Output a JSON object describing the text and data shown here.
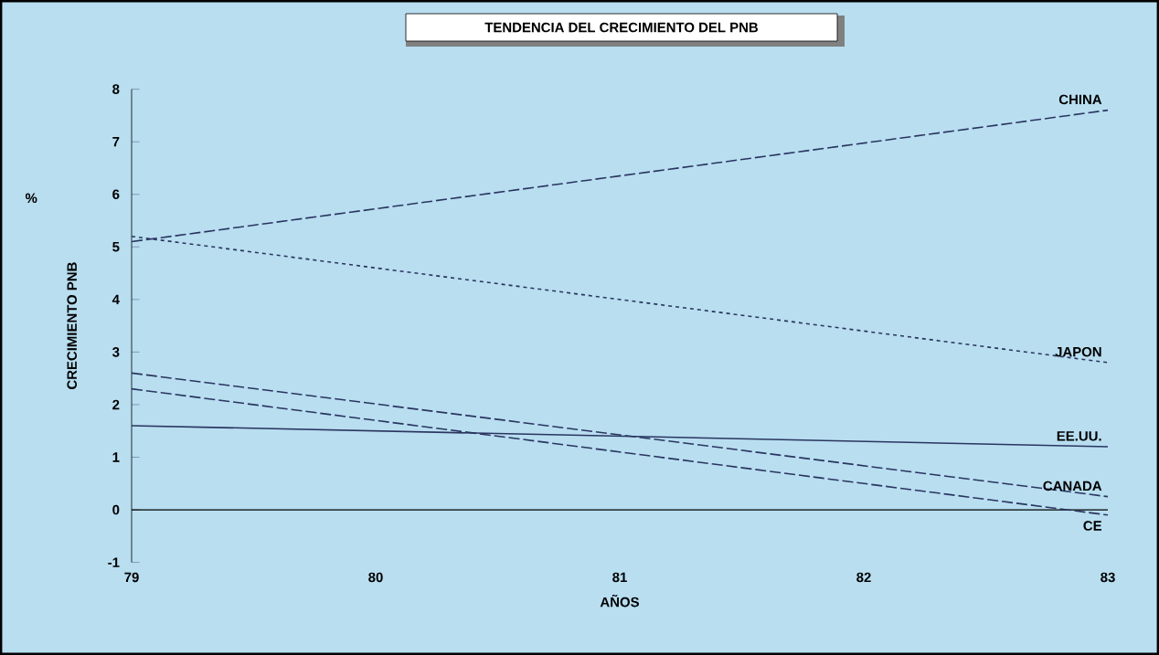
{
  "chart_data": {
    "type": "line",
    "title": "TENDENCIA DEL CRECIMIENTO DEL PNB",
    "xlabel": "AÑOS",
    "ylabel": "CRECIMIENTO PNB",
    "annotations": [
      "%"
    ],
    "x": [
      79,
      83
    ],
    "xlim": [
      79,
      83
    ],
    "xticks": [
      79,
      80,
      81,
      82,
      83
    ],
    "ylim": [
      -1,
      8
    ],
    "yticks": [
      -1,
      0,
      1,
      2,
      3,
      4,
      5,
      6,
      7,
      8
    ],
    "marker": "none",
    "ref_lines": [
      {
        "axis": "y",
        "value": 0,
        "color": "#000000"
      }
    ],
    "series": [
      {
        "name": "CHINA",
        "color": "#2a3560",
        "line_style": "dashed",
        "values": [
          5.1,
          7.6
        ]
      },
      {
        "name": "JAPON",
        "color": "#2a3560",
        "line_style": "dotted",
        "values": [
          5.2,
          2.8
        ]
      },
      {
        "name": "EE.UU.",
        "color": "#2a3560",
        "line_style": "solid",
        "values": [
          1.6,
          1.2
        ]
      },
      {
        "name": "CANADA",
        "color": "#2a3560",
        "line_style": "dashed",
        "values": [
          2.6,
          0.25
        ]
      },
      {
        "name": "CE",
        "color": "#2a3560",
        "line_style": "dashed",
        "values": [
          2.3,
          -0.1
        ]
      }
    ]
  }
}
